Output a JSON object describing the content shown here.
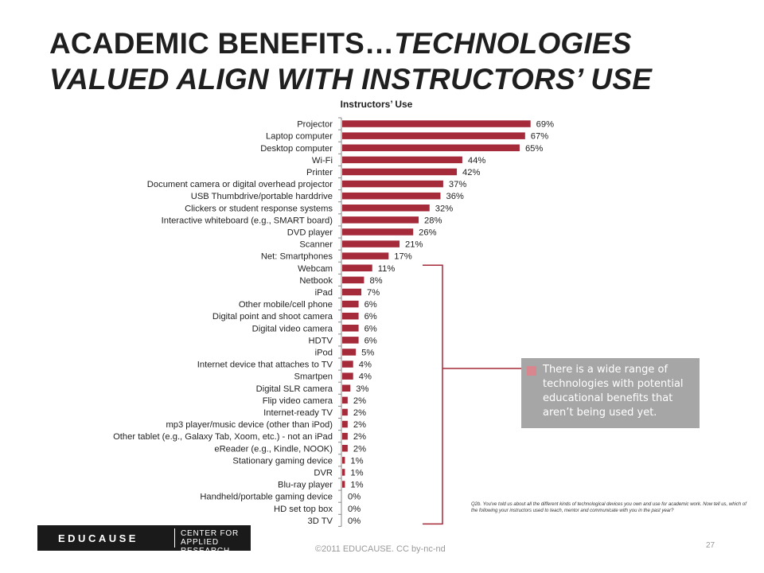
{
  "slide": {
    "title_line1_prefix": "ACADEMIC BENEFITS…",
    "title_line1_italic": "TECHNOLOGIES",
    "title_line2": "VALUED ALIGN WITH INSTRUCTORS’ USE",
    "callout_text": "There is a wide range of technologies with potential educational benefits that aren’t being used yet.",
    "footnote": "Q2b. You've told us about all the different kinds of technological devices you own and use for academic work. Now tell us, which of the following your instructors used to teach, mentor and communicate with you in the past year?",
    "logo_word": "EDUCAUSE",
    "logo_sub_line1": "CENTER FOR",
    "logo_sub_line2": "APPLIED RESEARCH",
    "copyright": "©2011 EDUCAUSE. CC by-nc-nd",
    "page_number": "27"
  },
  "colors": {
    "bar": "#a52a3a",
    "callout_bg": "#a6a6a6",
    "callout_marker": "#d9868f",
    "bracket": "#a52a3a"
  },
  "chart_data": {
    "type": "bar",
    "orientation": "horizontal",
    "title": "Instructors’ Use",
    "categories": [
      "Projector",
      "Laptop computer",
      "Desktop computer",
      "Wi-Fi",
      "Printer",
      "Document camera or digital overhead projector",
      "USB Thumbdrive/portable harddrive",
      "Clickers or student response systems",
      "Interactive whiteboard (e.g., SMART board)",
      "DVD player",
      "Scanner",
      "Net: Smartphones",
      "Webcam",
      "Netbook",
      "iPad",
      "Other mobile/cell phone",
      "Digital point and shoot camera",
      "Digital video camera",
      "HDTV",
      "iPod",
      "Internet device that attaches to TV",
      "Smartpen",
      "Digital SLR camera",
      "Flip video camera",
      "Internet-ready TV",
      "mp3 player/music device (other than iPod)",
      "Other tablet (e.g., Galaxy Tab, Xoom, etc.) - not an iPad",
      "eReader (e.g., Kindle, NOOK)",
      "Stationary gaming device",
      "DVR",
      "Blu-ray player",
      "Handheld/portable gaming device",
      "HD set top box",
      "3D TV"
    ],
    "values": [
      69,
      67,
      65,
      44,
      42,
      37,
      36,
      32,
      28,
      26,
      21,
      17,
      11,
      8,
      7,
      6,
      6,
      6,
      6,
      5,
      4,
      4,
      3,
      2,
      2,
      2,
      2,
      2,
      1,
      1,
      1,
      0,
      0,
      0
    ],
    "value_suffix": "%",
    "xlim": [
      0,
      100
    ],
    "grid": false,
    "legend": "none",
    "bracket_from_category": "Webcam",
    "bracket_to_category": "3D TV"
  }
}
